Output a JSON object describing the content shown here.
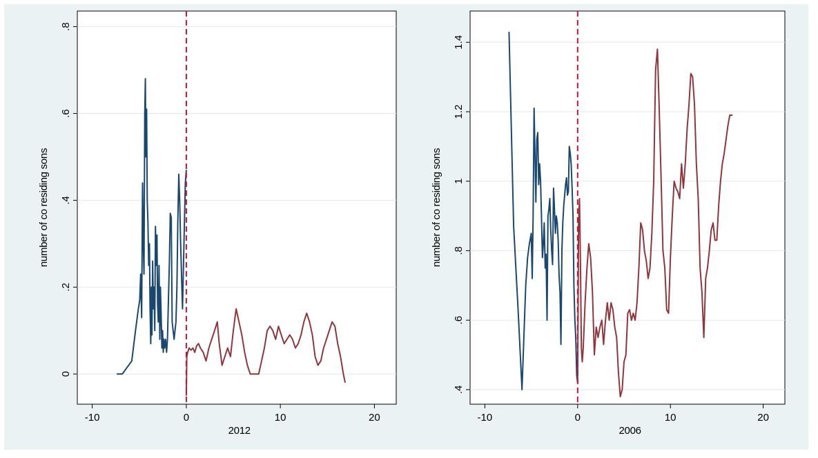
{
  "chart_data": [
    {
      "type": "line",
      "xlabel": "2012",
      "ylabel": "number of co residing sons",
      "xlim": [
        -11,
        21
      ],
      "ylim": [
        -0.06,
        0.82
      ],
      "xticks": [
        -10,
        0,
        10,
        20
      ],
      "xtick_labels": [
        "-10",
        "0",
        "10",
        "20"
      ],
      "yticks": [
        0,
        0.2,
        0.4,
        0.6,
        0.8
      ],
      "ytick_labels": [
        "0",
        ".2",
        ".4",
        ".6",
        ".8"
      ],
      "grid": true,
      "vline": {
        "x": 0,
        "style": "dashed",
        "color": "#c0143c"
      },
      "series": [
        {
          "color": "#1a476f",
          "x": [
            -7.4,
            -6.8,
            -5.8,
            -5.4,
            -5.1,
            -4.95,
            -4.85,
            -4.75,
            -4.65,
            -4.55,
            -4.5,
            -4.42,
            -4.35,
            -4.3,
            -4.22,
            -4.15,
            -4.08,
            -4.0,
            -3.92,
            -3.85,
            -3.78,
            -3.72,
            -3.65,
            -3.58,
            -3.5,
            -3.42,
            -3.35,
            -3.28,
            -3.2,
            -3.12,
            -3.05,
            -2.98,
            -2.9,
            -2.82,
            -2.75,
            -2.68,
            -2.6,
            -2.52,
            -2.45,
            -2.38,
            -2.3,
            -2.2,
            -2.1,
            -2.0,
            -1.9,
            -1.8,
            -1.7,
            -1.6,
            -1.5,
            -1.4,
            -1.3,
            -1.2,
            -1.1,
            -1.0,
            -0.9,
            -0.8,
            -0.7,
            -0.6,
            -0.5,
            -0.4,
            -0.3,
            -0.2,
            -0.1,
            0.0
          ],
          "y": [
            0.0,
            0.0,
            0.03,
            0.1,
            0.15,
            0.17,
            0.23,
            0.13,
            0.44,
            0.28,
            0.23,
            0.6,
            0.68,
            0.5,
            0.61,
            0.4,
            0.35,
            0.25,
            0.3,
            0.15,
            0.07,
            0.2,
            0.09,
            0.26,
            0.15,
            0.2,
            0.1,
            0.34,
            0.25,
            0.32,
            0.16,
            0.12,
            0.25,
            0.08,
            0.2,
            0.14,
            0.06,
            0.1,
            0.05,
            0.08,
            0.06,
            0.08,
            0.05,
            0.08,
            0.17,
            0.26,
            0.37,
            0.36,
            0.12,
            0.1,
            0.08,
            0.1,
            0.12,
            0.2,
            0.35,
            0.46,
            0.4,
            0.3,
            0.22,
            0.15,
            0.25,
            0.35,
            0.44,
            0.47
          ]
        },
        {
          "color": "#90353b",
          "x": [
            0.0,
            0.05,
            0.15,
            0.3,
            0.5,
            0.7,
            0.9,
            1.1,
            1.3,
            1.5,
            1.8,
            2.1,
            2.4,
            2.7,
            3.0,
            3.3,
            3.5,
            3.8,
            4.1,
            4.4,
            4.7,
            5.0,
            5.3,
            5.6,
            5.9,
            6.2,
            6.5,
            6.8,
            7.1,
            7.4,
            7.7,
            8.0,
            8.3,
            8.6,
            8.9,
            9.2,
            9.5,
            9.8,
            10.1,
            10.4,
            10.7,
            11.0,
            11.3,
            11.6,
            11.9,
            12.2,
            12.5,
            12.8,
            13.1,
            13.4,
            13.7,
            14.0,
            14.3,
            14.6,
            14.9,
            15.2,
            15.5,
            15.8,
            16.1,
            16.4,
            16.7,
            16.9
          ],
          "y": [
            -0.05,
            0.04,
            0.05,
            0.06,
            0.055,
            0.06,
            0.05,
            0.065,
            0.07,
            0.06,
            0.05,
            0.03,
            0.06,
            0.08,
            0.1,
            0.12,
            0.07,
            0.02,
            0.04,
            0.06,
            0.04,
            0.1,
            0.15,
            0.12,
            0.09,
            0.05,
            0.02,
            0.0,
            0.0,
            0.0,
            0.0,
            0.03,
            0.06,
            0.1,
            0.11,
            0.1,
            0.08,
            0.11,
            0.09,
            0.07,
            0.08,
            0.09,
            0.08,
            0.06,
            0.07,
            0.09,
            0.12,
            0.14,
            0.12,
            0.09,
            0.04,
            0.02,
            0.03,
            0.06,
            0.08,
            0.1,
            0.12,
            0.11,
            0.07,
            0.04,
            0.0,
            -0.02
          ]
        }
      ]
    },
    {
      "type": "line",
      "xlabel": "2006",
      "ylabel": "number of co residing sons",
      "xlim": [
        -11,
        21
      ],
      "ylim": [
        0.37,
        1.47
      ],
      "xticks": [
        -10,
        0,
        10,
        20
      ],
      "xtick_labels": [
        "-10",
        "0",
        "10",
        "20"
      ],
      "yticks": [
        0.4,
        0.6,
        0.8,
        1.0,
        1.2,
        1.4
      ],
      "ytick_labels": [
        ".4",
        ".6",
        ".8",
        "1",
        "1.2",
        "1.4"
      ],
      "grid": true,
      "vline": {
        "x": 0,
        "style": "dashed",
        "color": "#c0143c"
      },
      "series": [
        {
          "color": "#1a476f",
          "x": [
            -7.4,
            -6.9,
            -6.4,
            -6.0,
            -5.8,
            -5.6,
            -5.4,
            -5.2,
            -5.0,
            -4.9,
            -4.8,
            -4.7,
            -4.6,
            -4.5,
            -4.4,
            -4.3,
            -4.2,
            -4.1,
            -4.0,
            -3.9,
            -3.8,
            -3.7,
            -3.6,
            -3.5,
            -3.4,
            -3.3,
            -3.2,
            -3.1,
            -3.0,
            -2.9,
            -2.8,
            -2.7,
            -2.6,
            -2.5,
            -2.4,
            -2.3,
            -2.2,
            -2.1,
            -2.0,
            -1.9,
            -1.8,
            -1.7,
            -1.6,
            -1.5,
            -1.4,
            -1.3,
            -1.2,
            -1.1,
            -1.0,
            -0.9,
            -0.8,
            -0.7,
            -0.6,
            -0.5,
            -0.4,
            -0.3,
            -0.2,
            -0.1,
            0.0
          ],
          "y": [
            1.43,
            0.87,
            0.62,
            0.4,
            0.55,
            0.7,
            0.78,
            0.82,
            0.85,
            0.72,
            0.9,
            1.21,
            1.08,
            0.94,
            1.12,
            1.14,
            0.99,
            1.05,
            1.0,
            0.9,
            0.78,
            0.82,
            0.88,
            0.75,
            0.79,
            0.6,
            0.9,
            0.92,
            0.95,
            0.86,
            0.8,
            0.76,
            0.98,
            0.92,
            0.85,
            0.9,
            0.88,
            0.83,
            0.73,
            0.68,
            0.53,
            0.8,
            0.88,
            0.93,
            0.96,
            0.99,
            1.01,
            0.96,
            0.97,
            1.1,
            1.08,
            1.05,
            0.98,
            0.9,
            0.7,
            0.6,
            0.55,
            0.44,
            0.42
          ]
        },
        {
          "color": "#90353b",
          "x": [
            0.0,
            0.1,
            0.2,
            0.3,
            0.4,
            0.5,
            0.6,
            0.8,
            1.0,
            1.2,
            1.4,
            1.6,
            1.8,
            2.0,
            2.2,
            2.4,
            2.6,
            2.8,
            3.0,
            3.2,
            3.4,
            3.6,
            3.8,
            4.0,
            4.2,
            4.4,
            4.6,
            4.8,
            5.0,
            5.2,
            5.4,
            5.6,
            5.8,
            6.0,
            6.2,
            6.4,
            6.6,
            6.8,
            7.0,
            7.2,
            7.4,
            7.6,
            7.8,
            8.0,
            8.2,
            8.4,
            8.6,
            8.8,
            9.0,
            9.2,
            9.4,
            9.6,
            9.8,
            10.0,
            10.2,
            10.4,
            10.6,
            10.8,
            11.0,
            11.2,
            11.4,
            11.6,
            11.8,
            12.0,
            12.2,
            12.4,
            12.6,
            12.8,
            13.0,
            13.2,
            13.4,
            13.6,
            13.8,
            14.0,
            14.2,
            14.4,
            14.6,
            14.8,
            15.0,
            15.2,
            15.4,
            15.6,
            15.8,
            16.0,
            16.2,
            16.4,
            16.7
          ],
          "y": [
            0.42,
            0.88,
            0.95,
            0.78,
            0.52,
            0.48,
            0.52,
            0.65,
            0.75,
            0.82,
            0.78,
            0.68,
            0.5,
            0.58,
            0.55,
            0.58,
            0.6,
            0.53,
            0.6,
            0.65,
            0.6,
            0.65,
            0.63,
            0.58,
            0.55,
            0.45,
            0.38,
            0.4,
            0.48,
            0.5,
            0.62,
            0.63,
            0.6,
            0.62,
            0.6,
            0.65,
            0.75,
            0.88,
            0.86,
            0.8,
            0.77,
            0.72,
            0.75,
            0.85,
            1.0,
            1.32,
            1.38,
            1.2,
            1.0,
            0.8,
            0.75,
            0.63,
            0.62,
            0.78,
            0.9,
            1.0,
            0.98,
            0.97,
            0.95,
            1.05,
            0.98,
            1.05,
            1.15,
            1.22,
            1.31,
            1.3,
            1.22,
            1.05,
            0.95,
            0.75,
            0.68,
            0.55,
            0.72,
            0.75,
            0.8,
            0.86,
            0.88,
            0.83,
            0.83,
            0.93,
            1.0,
            1.05,
            1.08,
            1.12,
            1.16,
            1.19,
            1.19
          ]
        }
      ]
    }
  ]
}
